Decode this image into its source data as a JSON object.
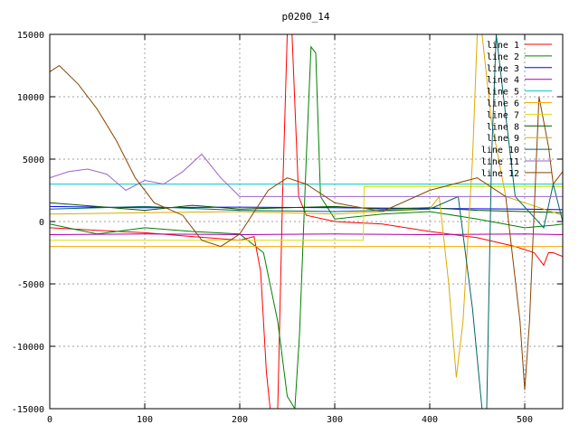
{
  "chart_data": {
    "type": "line",
    "title": "p0200_14",
    "xlabel": "",
    "ylabel": "",
    "xlim": [
      0,
      540
    ],
    "ylim": [
      -15000,
      15000
    ],
    "xticks": [
      0,
      100,
      200,
      300,
      400,
      500
    ],
    "yticks": [
      -15000,
      -10000,
      -5000,
      0,
      5000,
      10000,
      15000
    ],
    "grid": true,
    "legend_position": "top-right",
    "series": [
      {
        "name": "line 1",
        "color": "#ff0000",
        "x": [
          0,
          50,
          100,
          150,
          200,
          215,
          222,
          228,
          232,
          240,
          245,
          250,
          255,
          262,
          270,
          300,
          350,
          400,
          450,
          490,
          510,
          520,
          525,
          530,
          540
        ],
        "y": [
          -500,
          -700,
          -900,
          -1200,
          -1500,
          -1200,
          -4000,
          -12000,
          -15000,
          -15000,
          2000,
          15000,
          15000,
          2000,
          500,
          0,
          -200,
          -800,
          -1300,
          -2000,
          -2500,
          -3500,
          -2500,
          -2500,
          -2800
        ]
      },
      {
        "name": "line 2",
        "color": "#008000",
        "x": [
          0,
          50,
          100,
          150,
          200,
          225,
          240,
          250,
          258,
          263,
          270,
          275,
          280,
          285,
          300,
          350,
          400,
          450,
          500,
          530,
          540
        ],
        "y": [
          -200,
          -1000,
          -500,
          -800,
          -1000,
          -2500,
          -8000,
          -14000,
          -15000,
          -9000,
          5000,
          14000,
          13500,
          2000,
          200,
          600,
          800,
          200,
          -500,
          -300,
          -200
        ]
      },
      {
        "name": "line 3",
        "color": "#0000ff",
        "x": [
          0,
          100,
          200,
          300,
          400,
          500,
          540
        ],
        "y": [
          1200,
          1100,
          1150,
          1100,
          1050,
          1000,
          950
        ]
      },
      {
        "name": "line 4",
        "color": "#aa00aa",
        "x": [
          0,
          100,
          200,
          300,
          400,
          500,
          540
        ],
        "y": [
          -1050,
          -1000,
          -1050,
          -1000,
          -1050,
          -1000,
          -1050
        ]
      },
      {
        "name": "line 5",
        "color": "#00cccc",
        "x": [
          0,
          100,
          200,
          300,
          400,
          500,
          540
        ],
        "y": [
          3000,
          3000,
          3000,
          3000,
          3000,
          3000,
          3000
        ]
      },
      {
        "name": "line 6",
        "color": "#ffaa00",
        "x": [
          0,
          100,
          200,
          300,
          400,
          500,
          540
        ],
        "y": [
          -2000,
          -2000,
          -2000,
          -2000,
          -2000,
          -2000,
          -2000
        ]
      },
      {
        "name": "line 7",
        "color": "#dddd00",
        "x": [
          0,
          100,
          200,
          300,
          330,
          331,
          400,
          500,
          540
        ],
        "y": [
          -1500,
          -1500,
          -1500,
          -1500,
          -1500,
          2800,
          2800,
          2800,
          2800
        ]
      },
      {
        "name": "line 8",
        "color": "#005500",
        "x": [
          0,
          50,
          100,
          150,
          200,
          250,
          300,
          350,
          400,
          450,
          500,
          540
        ],
        "y": [
          1500,
          1200,
          900,
          1300,
          1000,
          1100,
          1200,
          1000,
          1100,
          900,
          800,
          700
        ]
      },
      {
        "name": "line 9",
        "color": "#ddaa00",
        "x": [
          0,
          100,
          200,
          300,
          400,
          410,
          420,
          428,
          435,
          445,
          450,
          455,
          465,
          480,
          500,
          540
        ],
        "y": [
          600,
          700,
          800,
          600,
          1000,
          2000,
          -5000,
          -12500,
          -8000,
          5000,
          15000,
          15000,
          8000,
          2000,
          1500,
          500
        ]
      },
      {
        "name": "line 10",
        "color": "#006666",
        "x": [
          0,
          100,
          200,
          300,
          400,
          430,
          445,
          455,
          460,
          465,
          470,
          490,
          520,
          530,
          540
        ],
        "y": [
          1000,
          1200,
          900,
          800,
          1000,
          2000,
          -7000,
          -15000,
          -15000,
          5000,
          15000,
          2000,
          -500,
          3000,
          0
        ]
      },
      {
        "name": "line 11",
        "color": "#9966cc",
        "x": [
          0,
          20,
          40,
          60,
          80,
          100,
          120,
          140,
          160,
          180,
          200,
          250,
          300,
          400,
          500,
          540
        ],
        "y": [
          3500,
          4000,
          4200,
          3800,
          2500,
          3300,
          3000,
          4000,
          5400,
          3500,
          2000,
          2000,
          2000,
          2000,
          2000,
          2000
        ]
      },
      {
        "name": "line 12",
        "color": "#884400",
        "x": [
          0,
          10,
          30,
          50,
          70,
          90,
          110,
          140,
          160,
          180,
          200,
          230,
          250,
          270,
          300,
          350,
          400,
          450,
          480,
          495,
          500,
          505,
          515,
          525,
          530,
          540
        ],
        "y": [
          12000,
          12500,
          11000,
          9000,
          6500,
          3500,
          1500,
          500,
          -1500,
          -2000,
          -1000,
          2500,
          3500,
          3000,
          1500,
          800,
          2500,
          3500,
          2000,
          -8000,
          -13500,
          -8000,
          10000,
          6000,
          3000,
          4000
        ]
      }
    ]
  }
}
